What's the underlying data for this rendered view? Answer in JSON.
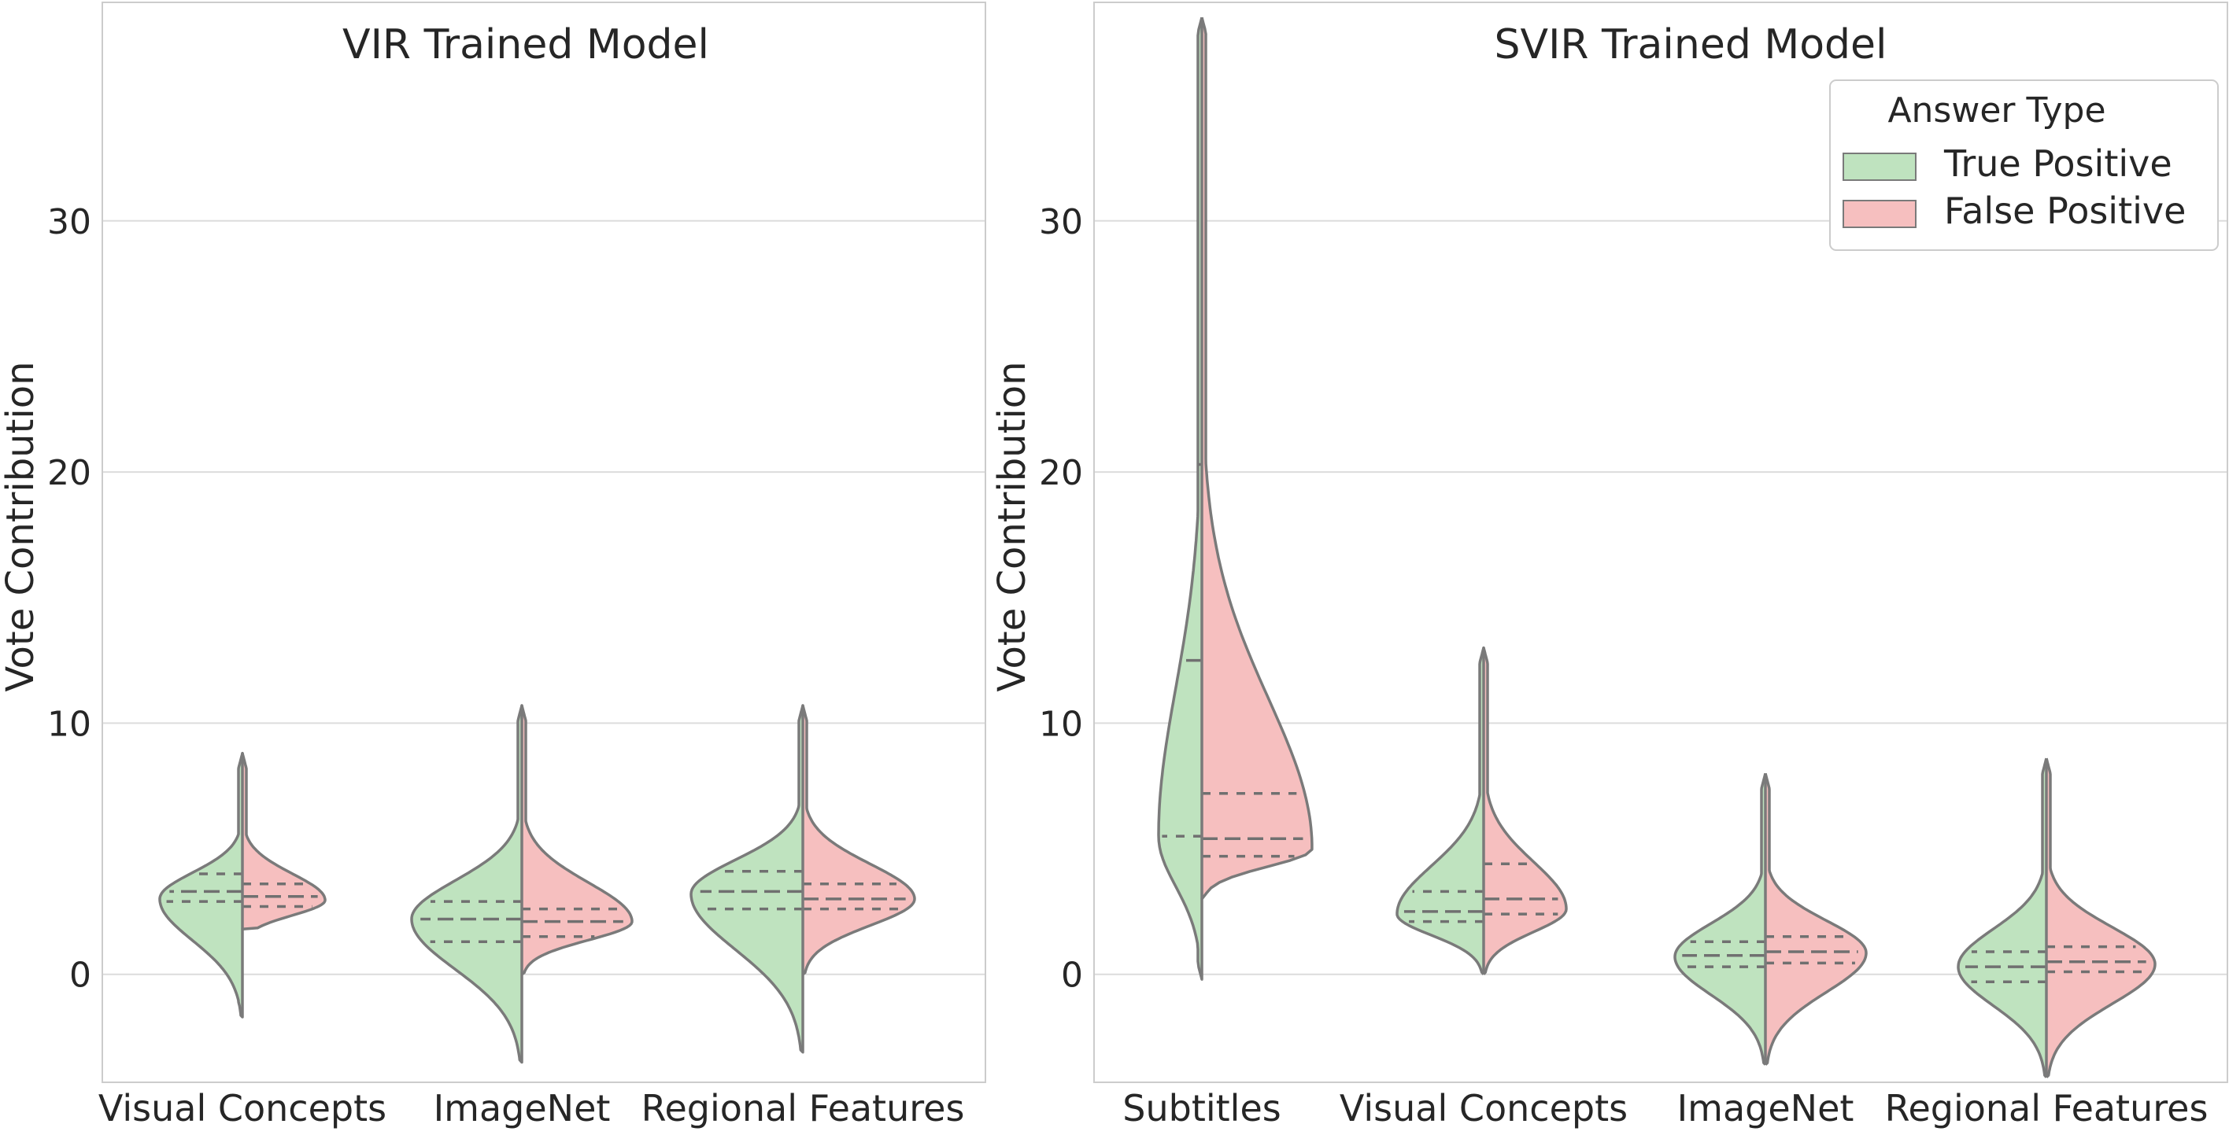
{
  "chart_data": [
    {
      "type": "violin",
      "title": "VIR Trained Model",
      "ylabel": "Vote Contribution",
      "xlabel": "",
      "ylim": [
        -4.3,
        38.7
      ],
      "yticks": [
        0,
        10,
        20,
        30
      ],
      "grid": "horizontal",
      "split": true,
      "categories": [
        "Visual Concepts",
        "ImageNet",
        "Regional Features"
      ],
      "series": [
        {
          "name": "True Positive",
          "color": "#bfe3bf",
          "violins": [
            {
              "min": -1.7,
              "max": 8.8,
              "peak": 3.0,
              "q1": 2.9,
              "median": 3.3,
              "q3": 4.0
            },
            {
              "min": -3.5,
              "max": 10.7,
              "peak": 2.2,
              "q1": 1.3,
              "median": 2.2,
              "q3": 2.9
            },
            {
              "min": -3.1,
              "max": 10.7,
              "peak": 3.2,
              "q1": 2.6,
              "median": 3.3,
              "q3": 4.1
            }
          ]
        },
        {
          "name": "False Positive",
          "color": "#f6bfbf",
          "violins": [
            {
              "min": 1.8,
              "max": 8.8,
              "peak": 2.95,
              "q1": 2.7,
              "median": 3.1,
              "q3": 3.6
            },
            {
              "min": 0.0,
              "max": 10.7,
              "peak": 2.1,
              "q1": 1.5,
              "median": 2.1,
              "q3": 2.6
            },
            {
              "min": 0.0,
              "max": 10.7,
              "peak": 3.0,
              "q1": 2.6,
              "median": 3.0,
              "q3": 3.6
            }
          ]
        }
      ]
    },
    {
      "type": "violin",
      "title": "SVIR Trained Model",
      "ylabel": "Vote Contribution",
      "xlabel": "",
      "ylim": [
        -4.3,
        38.7
      ],
      "yticks": [
        0,
        10,
        20,
        30
      ],
      "grid": "horizontal",
      "split": true,
      "legend": {
        "title": "Answer Type",
        "placement": "top-right",
        "entries": [
          "True Positive",
          "False Positive"
        ]
      },
      "categories": [
        "Subtitles",
        "Visual Concepts",
        "ImageNet",
        "Regional Features"
      ],
      "series": [
        {
          "name": "True Positive",
          "color": "#bfe3bf",
          "violins": [
            {
              "min": -0.2,
              "max": 38.1,
              "peak": 5.5,
              "q1": 5.5,
              "median": 12.5,
              "q3": 20.3
            },
            {
              "min": 0.0,
              "max": 13.0,
              "peak": 2.4,
              "q1": 2.1,
              "median": 2.5,
              "q3": 3.3
            },
            {
              "min": -3.6,
              "max": 8.0,
              "peak": 0.7,
              "q1": 0.3,
              "median": 0.75,
              "q3": 1.3
            },
            {
              "min": -4.1,
              "max": 8.6,
              "peak": 0.3,
              "q1": -0.3,
              "median": 0.3,
              "q3": 0.9
            }
          ]
        },
        {
          "name": "False Positive",
          "color": "#f6bfbf",
          "violins": [
            {
              "min": 3.0,
              "max": 38.1,
              "peak": 5.0,
              "q1": 4.7,
              "median": 5.4,
              "q3": 7.2
            },
            {
              "min": 0.0,
              "max": 13.0,
              "peak": 2.6,
              "q1": 2.4,
              "median": 3.0,
              "q3": 4.4
            },
            {
              "min": -3.6,
              "max": 8.0,
              "peak": 0.85,
              "q1": 0.45,
              "median": 0.9,
              "q3": 1.5
            },
            {
              "min": -4.1,
              "max": 8.6,
              "peak": 0.4,
              "q1": 0.1,
              "median": 0.5,
              "q3": 1.1
            }
          ]
        }
      ]
    }
  ]
}
